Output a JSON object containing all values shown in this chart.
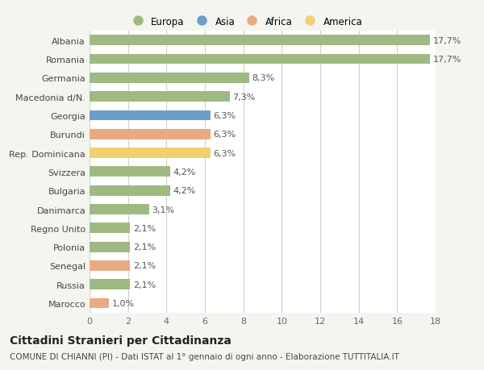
{
  "categories": [
    "Albania",
    "Romania",
    "Germania",
    "Macedonia d/N.",
    "Georgia",
    "Burundi",
    "Rep. Dominicana",
    "Svizzera",
    "Bulgaria",
    "Danimarca",
    "Regno Unito",
    "Polonia",
    "Senegal",
    "Russia",
    "Marocco"
  ],
  "values": [
    17.7,
    17.7,
    8.3,
    7.3,
    6.3,
    6.3,
    6.3,
    4.2,
    4.2,
    3.1,
    2.1,
    2.1,
    2.1,
    2.1,
    1.0
  ],
  "labels": [
    "17,7%",
    "17,7%",
    "8,3%",
    "7,3%",
    "6,3%",
    "6,3%",
    "6,3%",
    "4,2%",
    "4,2%",
    "3,1%",
    "2,1%",
    "2,1%",
    "2,1%",
    "2,1%",
    "1,0%"
  ],
  "continents": [
    "Europa",
    "Europa",
    "Europa",
    "Europa",
    "Asia",
    "Africa",
    "America",
    "Europa",
    "Europa",
    "Europa",
    "Europa",
    "Europa",
    "Africa",
    "Europa",
    "Africa"
  ],
  "colors": {
    "Europa": "#9eba82",
    "Asia": "#6a9fca",
    "Africa": "#e8aa82",
    "America": "#f0d070"
  },
  "xlim": [
    0,
    18
  ],
  "xticks": [
    0,
    2,
    4,
    6,
    8,
    10,
    12,
    14,
    16,
    18
  ],
  "title": "Cittadini Stranieri per Cittadinanza",
  "subtitle": "COMUNE DI CHIANNI (PI) - Dati ISTAT al 1° gennaio di ogni anno - Elaborazione TUTTITALIA.IT",
  "background_color": "#f5f5f0",
  "bar_background_color": "#ffffff",
  "grid_color": "#d0d0d0",
  "label_fontsize": 8,
  "tick_fontsize": 8,
  "title_fontsize": 10,
  "subtitle_fontsize": 7.5,
  "bar_height": 0.55
}
